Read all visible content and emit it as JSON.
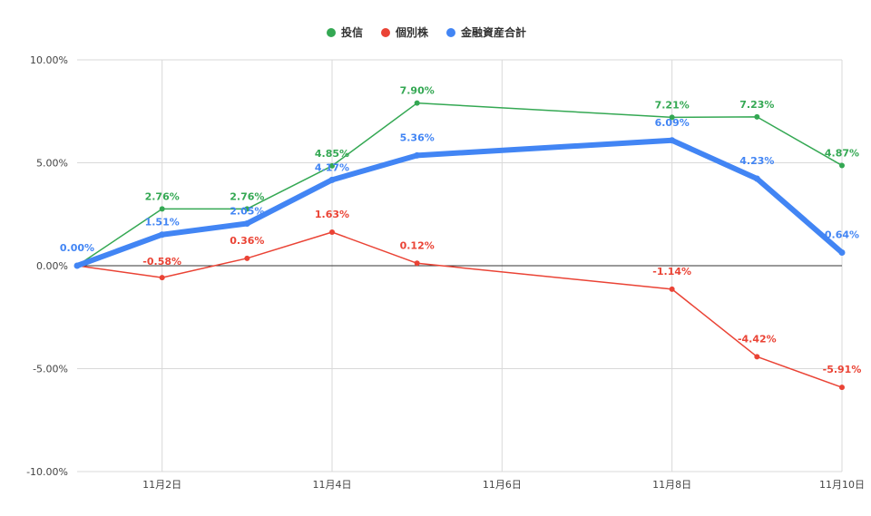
{
  "chart_data": {
    "type": "line",
    "x": [
      "2023-11-01",
      "2023-11-02",
      "2023-11-03",
      "2023-11-04",
      "2023-11-05",
      "2023-11-08",
      "2023-11-09",
      "2023-11-10"
    ],
    "x_tick_values": [
      "2023-11-02",
      "2023-11-04",
      "2023-11-06",
      "2023-11-08",
      "2023-11-10"
    ],
    "x_tick_labels": [
      "11月2日",
      "11月4日",
      "11月6日",
      "11月8日",
      "11月10日"
    ],
    "xlim": [
      "2023-11-01",
      "2023-11-10"
    ],
    "ylim": [
      -10,
      10
    ],
    "y_ticks": [
      10,
      5,
      0,
      -5,
      -10
    ],
    "y_tick_labels": [
      "10.00%",
      "5.00%",
      "0.00%",
      "-5.00%",
      "-10.00%"
    ],
    "grid": true,
    "legend_position": "top",
    "series": [
      {
        "name": "投信",
        "color": "#34a853",
        "values": [
          0.0,
          2.76,
          2.76,
          4.85,
          7.9,
          7.21,
          7.23,
          4.87
        ],
        "labels": [
          "",
          "2.76%",
          "2.76%",
          "4.85%",
          "7.90%",
          "7.21%",
          "7.23%",
          "4.87%"
        ]
      },
      {
        "name": "個別株",
        "color": "#ea4335",
        "values": [
          0.0,
          -0.58,
          0.36,
          1.63,
          0.12,
          -1.14,
          -4.42,
          -5.91
        ],
        "labels": [
          "",
          "-0.58%",
          "0.36%",
          "1.63%",
          "0.12%",
          "-1.14%",
          "-4.42%",
          "-5.91%"
        ]
      },
      {
        "name": "金融資産合計",
        "color": "#4285f4",
        "values": [
          0.0,
          1.51,
          2.05,
          4.17,
          5.36,
          6.09,
          4.23,
          0.64
        ],
        "labels": [
          "0.00%",
          "1.51%",
          "2.05%",
          "4.17%",
          "5.36%",
          "6.09%",
          "4.23%",
          "0.64%"
        ]
      }
    ]
  }
}
